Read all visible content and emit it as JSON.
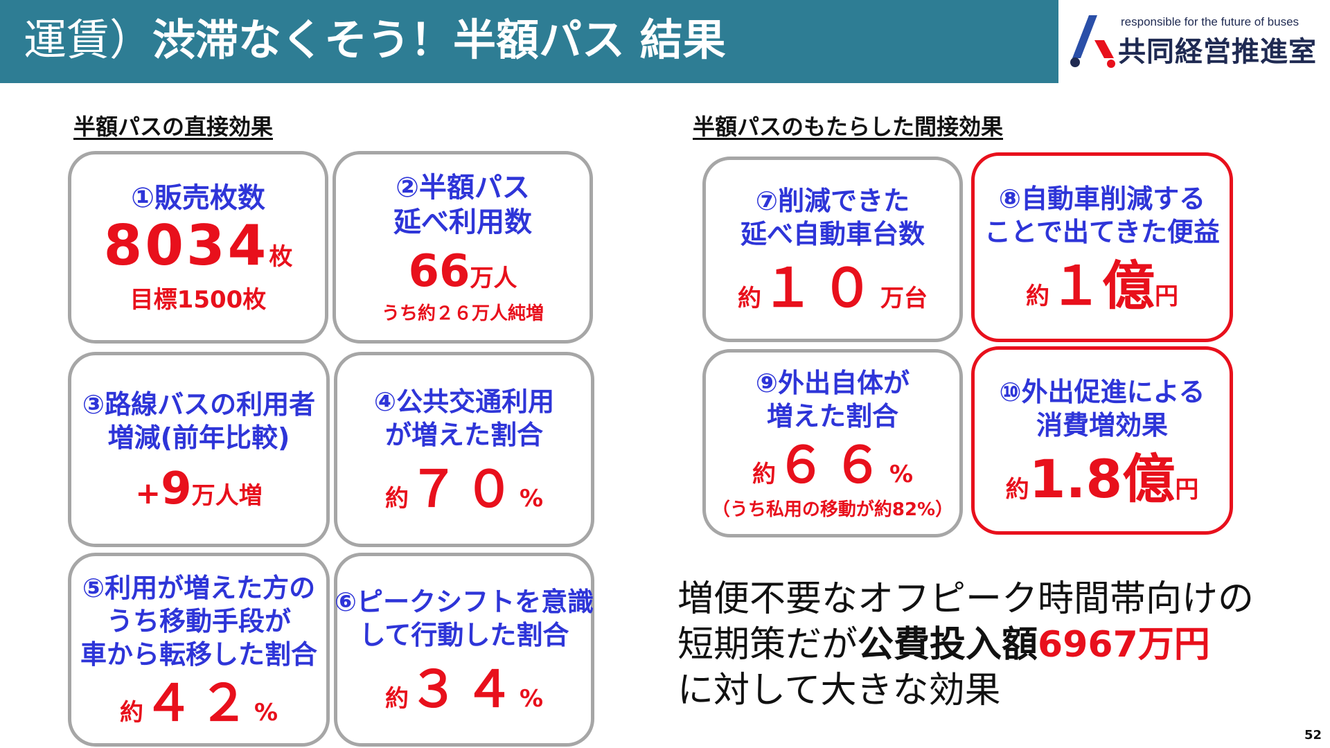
{
  "title": {
    "pre": "運賃）",
    "main": "渋滞なくそう！半額パス 結果"
  },
  "logo": {
    "tagline": "responsible for the future of buses",
    "name": "共同経営推進室"
  },
  "headings": {
    "left": "半額パスの直接効果",
    "right": "半額パスのもたらした間接効果"
  },
  "cards": {
    "c1": {
      "label": "①販売枚数",
      "value": "8034",
      "unit": "枚",
      "sub": "目標1500枚"
    },
    "c2": {
      "label_1": "②半額パス",
      "label_2": "延べ利用数",
      "value": "66",
      "unit": "万人",
      "sub": "うち約２６万人純増"
    },
    "c3": {
      "label_1": "③路線バスの利用者",
      "label_2": "増減(前年比較)",
      "prefix": "+",
      "value": "9",
      "unit": "万人増"
    },
    "c4": {
      "label_1": "④公共交通利用",
      "label_2": "が増えた割合",
      "prefix": "約",
      "value": "７０",
      "unit": "%"
    },
    "c5": {
      "label_1": "⑤利用が増えた方の",
      "label_2": "うち移動手段が",
      "label_3": "車から転移した割合",
      "prefix": "約",
      "value": "４２",
      "unit": "%"
    },
    "c6": {
      "label_1": "⑥ピークシフトを意識",
      "label_2": "して行動した割合",
      "prefix": "約",
      "value": "３４",
      "unit": "%"
    },
    "c7": {
      "label_1": "⑦削減できた",
      "label_2": "延べ自動車台数",
      "prefix": "約",
      "value": "１０",
      "unit": "万台"
    },
    "c8": {
      "label_1": "⑧自動車削減する",
      "label_2": "ことで出てきた便益",
      "prefix": "約",
      "value": "１億",
      "unit": "円"
    },
    "c9": {
      "label_1": "⑨外出自体が",
      "label_2": "増えた割合",
      "prefix": "約",
      "value": "６６",
      "unit": "%",
      "sub": "（うち私用の移動が約82%）"
    },
    "c10": {
      "label_1": "⑩外出促進による",
      "label_2": "消費増効果",
      "prefix": "約",
      "value": "1.8億",
      "unit": "円"
    }
  },
  "summary": {
    "line1": "増便不要なオフピーク時間帯向けの",
    "line2_pre": "短期策だが",
    "line2_bold": "公費投入額",
    "line2_red": "6967万円",
    "line3": "に対して大きな効果"
  },
  "page_number": "52",
  "colors": {
    "title_bar": "#2e7d94",
    "accent_red": "#e8101c",
    "accent_blue": "#2e35d8",
    "card_border": "#a6a6a6"
  }
}
